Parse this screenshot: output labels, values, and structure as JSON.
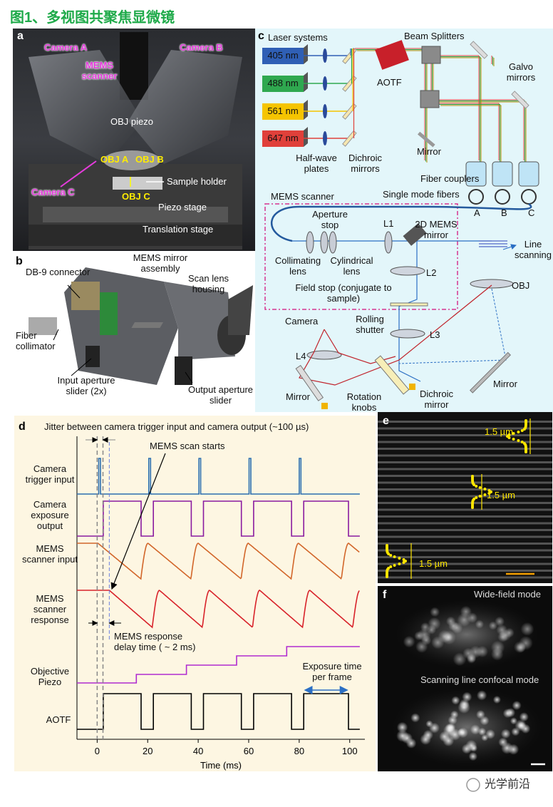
{
  "title": "图1、多视图共聚焦显微镜",
  "panel_a": {
    "letter": "a",
    "labels": [
      "Camera A",
      "Camera B",
      "MEMS scanner",
      "OBJ piezo",
      "OBJ A",
      "OBJ B",
      "Sample holder",
      "Camera C",
      "OBJ C",
      "Piezo stage",
      "Translation stage"
    ]
  },
  "panel_b": {
    "letter": "b",
    "labels": [
      "MEMS mirror assembly",
      "DB-9 connector",
      "Scan lens housing",
      "Fiber collimator",
      "Input aperture slider (2x)",
      "Output aperture slider"
    ]
  },
  "panel_c": {
    "letter": "c",
    "lasers": [
      "405 nm",
      "488 nm",
      "561 nm",
      "647 nm"
    ],
    "labels": [
      "Laser systems",
      "Beam Splitters",
      "AOTF",
      "Galvo mirrors",
      "Mirror",
      "Half-wave plates",
      "Dichroic mirrors",
      "Fiber couplers",
      "Single mode fibers",
      "A",
      "B",
      "C",
      "MEMS scanner",
      "Aperture stop",
      "L1",
      "2D MEMS mirror",
      "Collimating lens",
      "Cylindrical lens",
      "L2",
      "Line scanning",
      "OBJ",
      "Field stop (conjugate to sample)",
      "Camera",
      "Rolling shutter",
      "L3",
      "L4",
      "Mirror",
      "Rotation knobs",
      "Dichroic mirror",
      "Mirror"
    ]
  },
  "panel_d": {
    "letter": "d",
    "title": "Jitter between camera trigger input and camera output (~100 µs)",
    "signals": [
      "Camera trigger input",
      "Camera exposure output",
      "MEMS scanner input",
      "MEMS scanner response",
      "Objective Piezo",
      "AOTF"
    ],
    "annotations": [
      "MEMS scan starts",
      "MEMS response delay time ( ~ 2 ms)",
      "Exposure time per frame"
    ],
    "x_label": "Time (ms)",
    "xlim": [
      -8,
      106
    ],
    "xticks": [
      0,
      20,
      40,
      60,
      80,
      100
    ]
  },
  "panel_e": {
    "letter": "e",
    "labels": [
      "1.5 µm",
      "1.5 µm",
      "1.5 µm"
    ]
  },
  "panel_f": {
    "letter": "f",
    "labels": [
      "Wide-field mode",
      "Scanning line confocal mode"
    ]
  },
  "watermark": "光学前沿"
}
